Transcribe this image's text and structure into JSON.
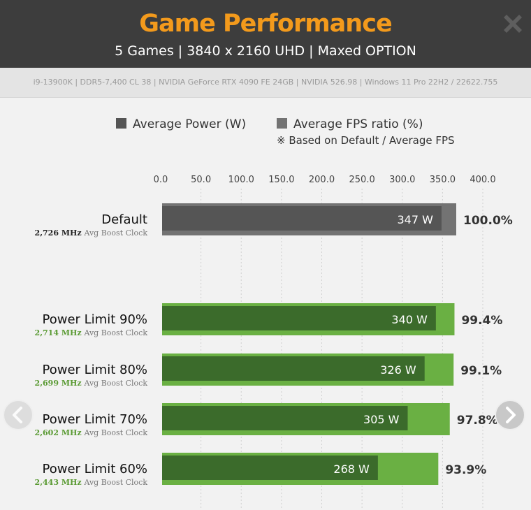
{
  "header": {
    "title": "Game Performance",
    "subtitle": "5 Games  |  3840 x 2160 UHD  |  Maxed OPTION",
    "specs": "i9-13900K  |  DDR5-7,400 CL 38  |  NVIDIA GeForce RTX 4090 FE 24GB  |  NVIDIA 526.98  |  Windows 11 Pro 22H2 / 22622.755"
  },
  "legend": {
    "power_label": "Average Power (W)",
    "fps_label": "Average FPS ratio (%)",
    "note": "※ Based on Default / Average FPS"
  },
  "colors": {
    "header_bg": "#3d3d3d",
    "title": "#f39a1c",
    "default_fps": "#737373",
    "default_power": "#555555",
    "limit_fps": "#6ab043",
    "limit_power": "#3b6b2b",
    "clock_green": "#5a9a33"
  },
  "chart_data": {
    "type": "bar",
    "orientation": "horizontal",
    "x_ticks": [
      "0.0",
      "50.0",
      "100.0",
      "150.0",
      "200.0",
      "250.0",
      "300.0",
      "350.0",
      "400.0"
    ],
    "xlim": [
      0,
      400
    ],
    "series": [
      {
        "name": "Average Power (W)",
        "values": [
          347,
          340,
          326,
          305,
          268
        ]
      },
      {
        "name": "Average FPS ratio (%)",
        "values": [
          100.0,
          99.4,
          99.1,
          97.8,
          93.9
        ]
      }
    ],
    "categories": [
      "Default",
      "Power Limit 90%",
      "Power Limit 80%",
      "Power Limit 70%",
      "Power Limit 60%"
    ],
    "rows": [
      {
        "label": "Default",
        "clock": "2,726 MHz",
        "clock_suffix": "Avg Boost Clock",
        "power": 347,
        "power_label": "347 W",
        "fps": 100.0,
        "fps_label": "100.0%",
        "style": "default"
      },
      {
        "label": "Power Limit 90%",
        "clock": "2,714 MHz",
        "clock_suffix": "Avg Boost Clock",
        "power": 340,
        "power_label": "340 W",
        "fps": 99.4,
        "fps_label": "99.4%",
        "style": "limit"
      },
      {
        "label": "Power Limit 80%",
        "clock": "2,699 MHz",
        "clock_suffix": "Avg Boost Clock",
        "power": 326,
        "power_label": "326 W",
        "fps": 99.1,
        "fps_label": "99.1%",
        "style": "limit"
      },
      {
        "label": "Power Limit 70%",
        "clock": "2,602 MHz",
        "clock_suffix": "Avg Boost Clock",
        "power": 305,
        "power_label": "305 W",
        "fps": 97.8,
        "fps_label": "97.8%",
        "style": "limit"
      },
      {
        "label": "Power Limit 60%",
        "clock": "2,443 MHz",
        "clock_suffix": "Avg Boost Clock",
        "power": 268,
        "power_label": "268 W",
        "fps": 93.9,
        "fps_label": "93.9%",
        "style": "limit"
      }
    ],
    "grid": true,
    "legend_position": "top"
  },
  "nav": {
    "prev_icon": "chevron-left-icon",
    "next_icon": "chevron-right-icon",
    "close_icon": "close-icon"
  }
}
